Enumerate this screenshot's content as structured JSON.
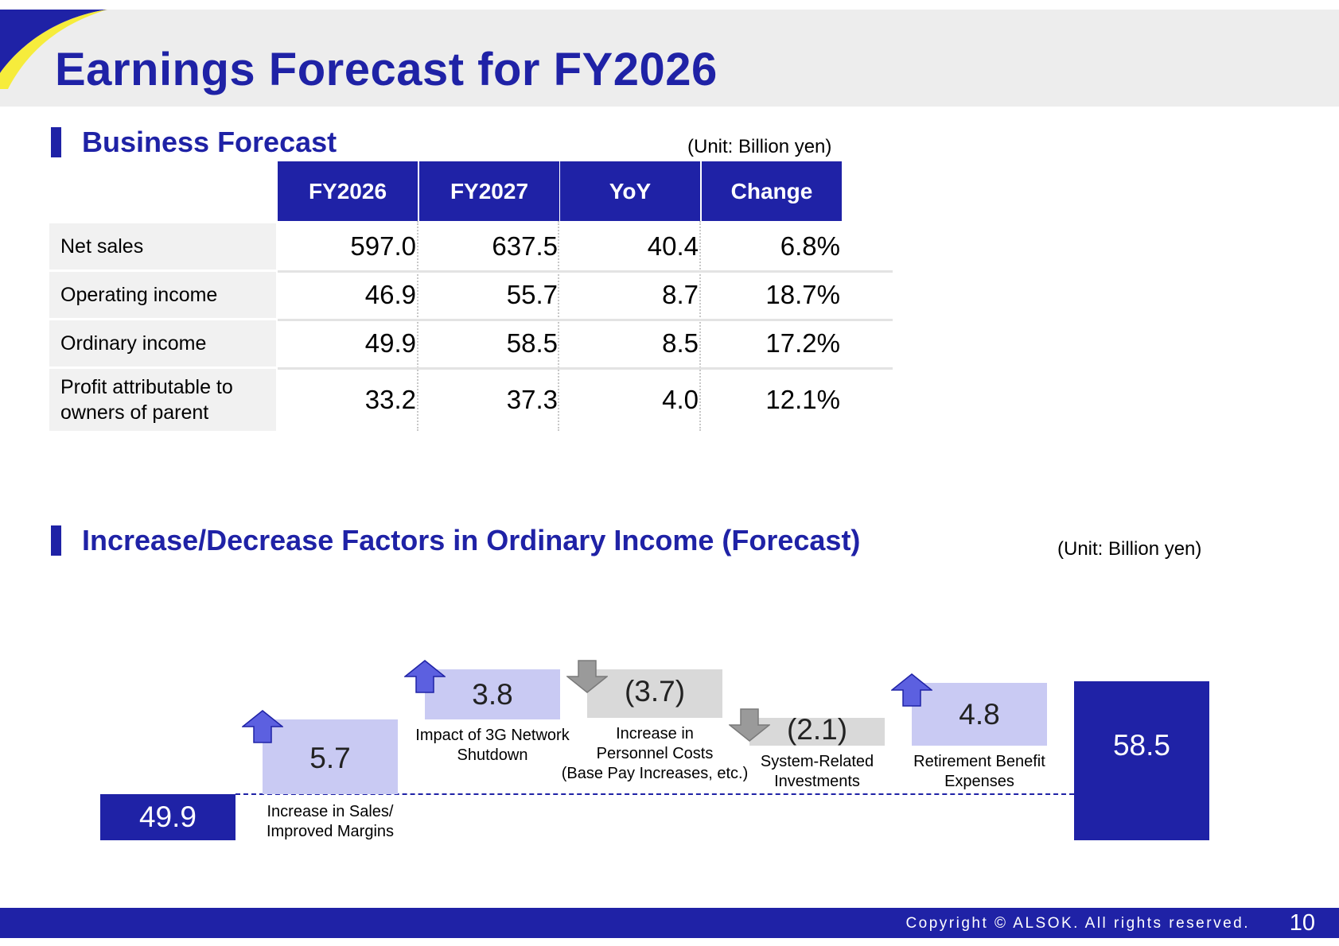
{
  "page": {
    "title": "Earnings Forecast for FY2026",
    "footer": {
      "copyright": "Copyright © ALSOK. All rights reserved.",
      "page_number": "10"
    }
  },
  "colors": {
    "brand_blue": "#1f22a6",
    "increase_fill": "#c9caf3",
    "decrease_fill": "#d9d9d9",
    "increase_arrow": "#5c60e0",
    "decrease_arrow": "#9a9a9a",
    "accent_yellow": "#f6ec3c"
  },
  "business_forecast": {
    "section_title": "Business Forecast",
    "unit": "(Unit: Billion yen)",
    "columns": [
      "FY2026",
      "FY2027",
      "YoY",
      "Change"
    ],
    "rows": [
      {
        "label": "Net sales",
        "values": [
          "597.0",
          "637.5",
          "40.4",
          "6.8%"
        ]
      },
      {
        "label": "Operating income",
        "values": [
          "46.9",
          "55.7",
          "8.7",
          "18.7%"
        ]
      },
      {
        "label": "Ordinary income",
        "values": [
          "49.9",
          "58.5",
          "8.5",
          "17.2%"
        ]
      },
      {
        "label": "Profit attributable to\nowners of parent",
        "values": [
          "33.2",
          "37.3",
          "4.0",
          "12.1%"
        ]
      }
    ]
  },
  "factors": {
    "section_title": "Increase/Decrease Factors in Ordinary Income (Forecast)",
    "unit": "(Unit: Billion yen)"
  },
  "chart_data": {
    "type": "bar",
    "subtype": "waterfall",
    "title": "Increase/Decrease Factors in Ordinary Income (Forecast)",
    "unit": "Billion yen",
    "start": {
      "value": 49.9,
      "label": "49.9"
    },
    "steps": [
      {
        "value": 5.7,
        "label": "5.7",
        "category": "Increase in Sales/\nImproved Margins",
        "direction": "up"
      },
      {
        "value": 3.8,
        "label": "3.8",
        "category": "Impact of 3G Network\nShutdown",
        "direction": "up"
      },
      {
        "value": -3.7,
        "label": "(3.7)",
        "category": "Increase in\nPersonnel Costs\n(Base Pay Increases, etc.)",
        "direction": "down"
      },
      {
        "value": -2.1,
        "label": "(2.1)",
        "category": "System-Related\nInvestments",
        "direction": "down"
      },
      {
        "value": 4.8,
        "label": "4.8",
        "category": "Retirement Benefit\nExpenses",
        "direction": "up"
      }
    ],
    "end": {
      "value": 58.5,
      "label": "58.5"
    },
    "baseline_dashed": true
  }
}
